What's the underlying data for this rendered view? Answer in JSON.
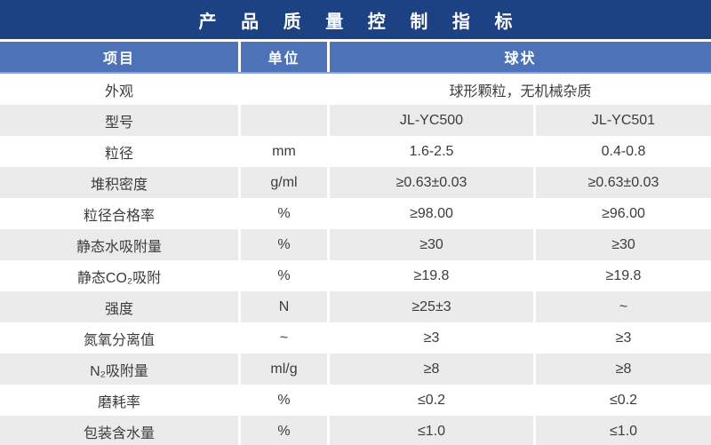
{
  "title": "产 品 质 量 控 制 指 标",
  "table": {
    "headers": {
      "item": "项目",
      "unit": "单位",
      "group": "球状"
    },
    "rows": [
      {
        "item": "外观",
        "unit": "",
        "v1": "球形颗粒，无机械杂质",
        "v2": "",
        "span": true
      },
      {
        "item": "型号",
        "unit": "",
        "v1": "JL-YC500",
        "v2": "JL-YC501",
        "span": false
      },
      {
        "item": "粒径",
        "unit": "mm",
        "v1": "1.6-2.5",
        "v2": "0.4-0.8",
        "span": false
      },
      {
        "item": "堆积密度",
        "unit": "g/ml",
        "v1": "≥0.63±0.03",
        "v2": "≥0.63±0.03",
        "span": false
      },
      {
        "item": "粒径合格率",
        "unit": "%",
        "v1": "≥98.00",
        "v2": "≥96.00",
        "span": false
      },
      {
        "item": "静态水吸附量",
        "unit": "%",
        "v1": "≥30",
        "v2": "≥30",
        "span": false
      },
      {
        "item": "静态CO₂吸附",
        "unit": "%",
        "v1": "≥19.8",
        "v2": "≥19.8",
        "span": false
      },
      {
        "item": "强度",
        "unit": "N",
        "v1": "≥25±3",
        "v2": "~",
        "span": false
      },
      {
        "item": "氮氧分离值",
        "unit": "~",
        "v1": "≥3",
        "v2": "≥3",
        "span": false
      },
      {
        "item": "N₂吸附量",
        "unit": "ml/g",
        "v1": "≥8",
        "v2": "≥8",
        "span": false
      },
      {
        "item": "磨耗率",
        "unit": "%",
        "v1": "≤0.2",
        "v2": "≤0.2",
        "span": false
      },
      {
        "item": "包装含水量",
        "unit": "%",
        "v1": "≤1.0",
        "v2": "≤1.0",
        "span": false
      }
    ]
  },
  "colors": {
    "title_bar": "#1d4284",
    "header_row": "#4d72b8",
    "header_underline": "#8aa5d2",
    "row_alt": "#ebebeb",
    "text": "#3c3c3c",
    "header_text": "#ffffff"
  }
}
